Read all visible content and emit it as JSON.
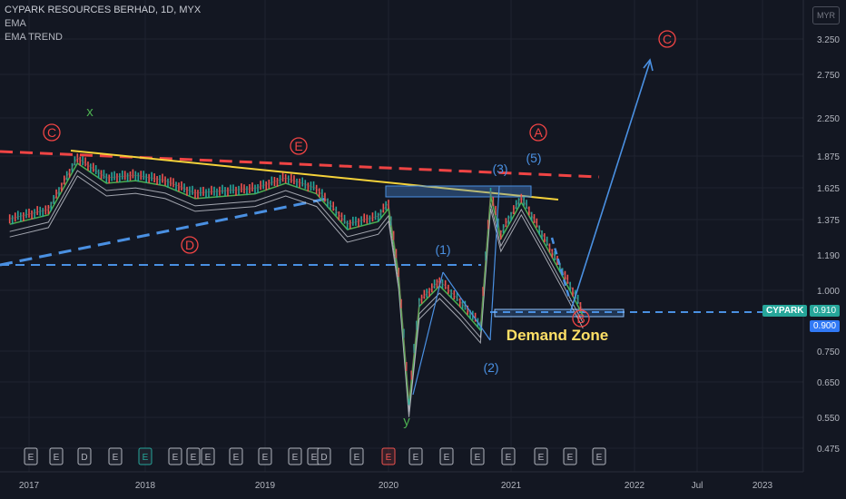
{
  "header": {
    "symbol_line": "CYPARK RESOURCES BERHAD, 1D, MYX",
    "indicators": [
      "EMA",
      "EMA TREND"
    ],
    "currency": "MYR"
  },
  "price_axis": {
    "ticks": [
      "3.250",
      "2.750",
      "2.250",
      "1.875",
      "1.625",
      "1.375",
      "1.190",
      "1.000",
      "0.750",
      "0.650",
      "0.550",
      "0.475"
    ],
    "last_price": "0.910",
    "second_price": "0.900",
    "symbol_tag": "CYPARK"
  },
  "time_axis": {
    "ticks": [
      "2017",
      "2018",
      "2019",
      "2020",
      "2021",
      "2022",
      "Jul",
      "2023"
    ]
  },
  "annotations": {
    "wave_labels": [
      "C",
      "E",
      "D",
      "A",
      "C",
      "B"
    ],
    "plain_labels": [
      "x",
      "y",
      "(1)",
      "(2)",
      "(3)",
      "(5)"
    ],
    "demand_zone": "Demand Zone"
  },
  "event_markers": [
    "E",
    "E",
    "D",
    "E",
    "E",
    "E",
    "E",
    "E",
    "E",
    "E",
    "E",
    "E",
    "D",
    "E",
    "E",
    "E",
    "E",
    "E",
    "E",
    "E",
    "E",
    "E",
    "E"
  ],
  "colors": {
    "background": "#131722",
    "up_candle": "#26a69a",
    "down_candle": "#ef5350",
    "ema_fast": "#4caf50",
    "ema_slow": "#c8cbd3",
    "trend_red": "#ef4444",
    "trend_blue": "#4a90e2",
    "trend_yellow": "#f5d23a",
    "demand_zone_text": "#ffe066",
    "price_tag": "#26a69a"
  },
  "chart_data": {
    "type": "line",
    "title": "CYPARK RESOURCES BERHAD, 1D, MYX",
    "y_axis_scale": "log",
    "ylim": [
      0.45,
      3.6
    ],
    "series": [
      {
        "name": "CYPARK",
        "x": [
          "2016-11",
          "2017-03",
          "2017-06",
          "2017-09",
          "2017-12",
          "2018-03",
          "2018-06",
          "2018-09",
          "2018-12",
          "2019-03",
          "2019-06",
          "2019-09",
          "2019-12",
          "2020-01",
          "2020-02",
          "2020-03",
          "2020-04",
          "2020-06",
          "2020-08",
          "2020-10",
          "2020-11",
          "2020-12",
          "2021-02",
          "2021-04",
          "2021-06",
          "2021-08"
        ],
        "values": [
          1.38,
          1.45,
          1.86,
          1.7,
          1.72,
          1.68,
          1.58,
          1.6,
          1.62,
          1.7,
          1.62,
          1.35,
          1.4,
          1.5,
          1.1,
          0.6,
          0.95,
          1.05,
          0.95,
          0.85,
          1.6,
          1.3,
          1.55,
          1.3,
          1.1,
          0.91
        ]
      }
    ]
  }
}
